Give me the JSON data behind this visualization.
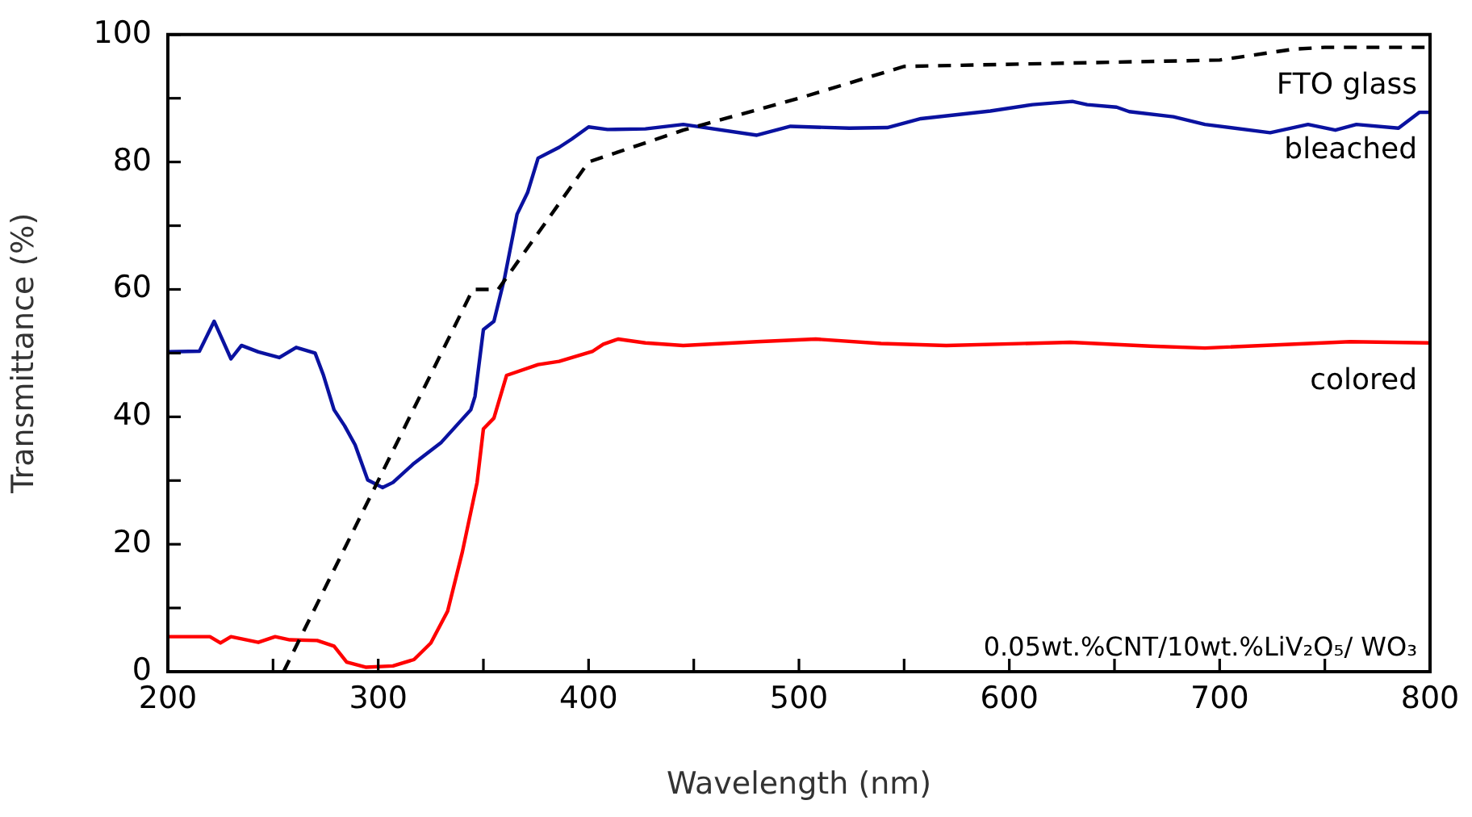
{
  "chart_data": {
    "type": "line",
    "xlabel": "Wavelength (nm)",
    "ylabel": "Transmittance (%)",
    "xlim": [
      200,
      800
    ],
    "ylim": [
      0,
      100
    ],
    "xticks": [
      200,
      {
        "value": 250,
        "label": null
      },
      300,
      {
        "value": 350,
        "label": null
      },
      400,
      {
        "value": 450,
        "label": null
      },
      500,
      {
        "value": 550,
        "label": null
      },
      600,
      {
        "value": 650,
        "label": null
      },
      700,
      {
        "value": 750,
        "label": null
      },
      800
    ],
    "yticks": [
      0,
      {
        "value": 10,
        "label": null
      },
      20,
      {
        "value": 30,
        "label": null
      },
      40,
      {
        "value": 50,
        "label": null
      },
      60,
      {
        "value": 70,
        "label": null
      },
      80,
      {
        "value": 90,
        "label": null
      },
      100
    ],
    "marker": "none",
    "grid": false,
    "annotations": [
      "0.05wt.%CNT/10wt.%LiV₂O₅/ WO₃"
    ],
    "series": [
      {
        "name": "FTO glass",
        "color": "#000000",
        "line_style": "dashed",
        "x": [
          255,
          345,
          357,
          400,
          445,
          500,
          550,
          700,
          735,
          750,
          800
        ],
        "values": [
          0,
          60,
          60,
          80,
          85,
          90,
          95,
          96,
          97.7,
          98,
          98
        ]
      },
      {
        "name": "bleached",
        "color": "#0a12a0",
        "line_style": "solid",
        "x": [
          200,
          215,
          222,
          230,
          235,
          243,
          253,
          261,
          270,
          274,
          279,
          284,
          289,
          295,
          302,
          307,
          317,
          330,
          344,
          346,
          350,
          355,
          360,
          366,
          371,
          376,
          386,
          392,
          400,
          409,
          427,
          445,
          480,
          496,
          524,
          542,
          558,
          591,
          611,
          630,
          637,
          651,
          657,
          678,
          693,
          724,
          742,
          755,
          765,
          785,
          795,
          800
        ],
        "values": [
          50.2,
          50.3,
          55,
          49.1,
          51.2,
          50.2,
          49.3,
          50.9,
          50,
          46.5,
          41.1,
          38.6,
          35.6,
          30.1,
          28.9,
          29.7,
          32.7,
          36,
          41.1,
          43.2,
          53.7,
          55,
          61.7,
          71.8,
          75.2,
          80.6,
          82.3,
          83.6,
          85.5,
          85.1,
          85.2,
          85.9,
          84.2,
          85.6,
          85.3,
          85.4,
          86.8,
          88,
          89,
          89.5,
          89,
          88.6,
          87.9,
          87.1,
          85.9,
          84.6,
          85.9,
          85,
          85.9,
          85.3,
          87.8,
          87.8
        ]
      },
      {
        "name": "colored",
        "color": "#ff0000",
        "line_style": "solid",
        "x": [
          200,
          220,
          225,
          230,
          243,
          251,
          258,
          271,
          279,
          285,
          294,
          307,
          317,
          325,
          333,
          340,
          347,
          350,
          355,
          361,
          376,
          386,
          402,
          407,
          414,
          427,
          445,
          480,
          508,
          539,
          570,
          629,
          667,
          693,
          762,
          800
        ],
        "values": [
          5.5,
          5.5,
          4.5,
          5.5,
          4.6,
          5.5,
          5,
          4.9,
          4,
          1.5,
          0.7,
          0.9,
          1.9,
          4.5,
          9.5,
          18.8,
          29.7,
          38.1,
          39.8,
          46.5,
          48.2,
          48.7,
          50.3,
          51.4,
          52.2,
          51.6,
          51.2,
          51.8,
          52.2,
          51.5,
          51.2,
          51.7,
          51.1,
          50.8,
          51.8,
          51.6
        ]
      }
    ]
  }
}
